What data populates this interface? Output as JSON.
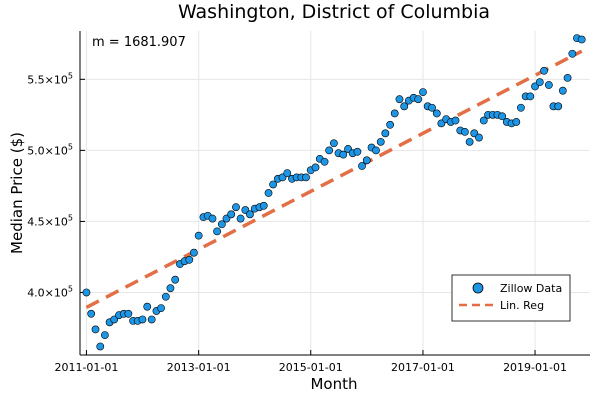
{
  "chart_data": {
    "type": "scatter",
    "title": "Washington, District of Columbia",
    "xlabel": "Month",
    "ylabel": "Median Price ($)",
    "annotation": "m = 1681.907",
    "x_ticks": [
      "2011-01-01",
      "2013-01-01",
      "2015-01-01",
      "2017-01-01",
      "2019-01-01"
    ],
    "y_ticks": [
      {
        "value": 400000,
        "mantissa": "4.0×10",
        "exp": "5"
      },
      {
        "value": 450000,
        "mantissa": "4.5×10",
        "exp": "5"
      },
      {
        "value": 500000,
        "mantissa": "5.0×10",
        "exp": "5"
      },
      {
        "value": 550000,
        "mantissa": "5.5×10",
        "exp": "5"
      }
    ],
    "xlim": [
      "2010-11-20",
      "2019-12-25"
    ],
    "ylim": [
      356000,
      584000
    ],
    "grid": true,
    "legend_position": "bottom-right",
    "series": [
      {
        "name": "Zillow Data",
        "kind": "scatter",
        "color": "#1e96e6",
        "x": [
          "2011-01",
          "2011-02",
          "2011-03",
          "2011-04",
          "2011-05",
          "2011-06",
          "2011-07",
          "2011-08",
          "2011-09",
          "2011-10",
          "2011-11",
          "2011-12",
          "2012-01",
          "2012-02",
          "2012-03",
          "2012-04",
          "2012-05",
          "2012-06",
          "2012-07",
          "2012-08",
          "2012-09",
          "2012-10",
          "2012-11",
          "2012-12",
          "2013-01",
          "2013-02",
          "2013-03",
          "2013-04",
          "2013-05",
          "2013-06",
          "2013-07",
          "2013-08",
          "2013-09",
          "2013-10",
          "2013-11",
          "2013-12",
          "2014-01",
          "2014-02",
          "2014-03",
          "2014-04",
          "2014-05",
          "2014-06",
          "2014-07",
          "2014-08",
          "2014-09",
          "2014-10",
          "2014-11",
          "2014-12",
          "2015-01",
          "2015-02",
          "2015-03",
          "2015-04",
          "2015-05",
          "2015-06",
          "2015-07",
          "2015-08",
          "2015-09",
          "2015-10",
          "2015-11",
          "2015-12",
          "2016-01",
          "2016-02",
          "2016-03",
          "2016-04",
          "2016-05",
          "2016-06",
          "2016-07",
          "2016-08",
          "2016-09",
          "2016-10",
          "2016-11",
          "2016-12",
          "2017-01",
          "2017-02",
          "2017-03",
          "2017-04",
          "2017-05",
          "2017-06",
          "2017-07",
          "2017-08",
          "2017-09",
          "2017-10",
          "2017-11",
          "2017-12",
          "2018-01",
          "2018-02",
          "2018-03",
          "2018-04",
          "2018-05",
          "2018-06",
          "2018-07",
          "2018-08",
          "2018-09",
          "2018-10",
          "2018-11",
          "2018-12",
          "2019-01",
          "2019-02",
          "2019-03",
          "2019-04",
          "2019-05",
          "2019-06",
          "2019-07",
          "2019-08",
          "2019-09",
          "2019-10",
          "2019-11"
        ],
        "y": [
          400000,
          385000,
          374000,
          362000,
          370000,
          379000,
          381000,
          384000,
          385000,
          385000,
          380000,
          380000,
          381000,
          390000,
          381000,
          387000,
          389000,
          397000,
          403000,
          409000,
          420000,
          422000,
          423000,
          428000,
          440000,
          453000,
          454000,
          452000,
          443000,
          448000,
          452000,
          455000,
          460000,
          452000,
          458000,
          455000,
          459000,
          460000,
          461000,
          470000,
          476000,
          480000,
          481000,
          484000,
          480000,
          481000,
          481000,
          481000,
          486000,
          488000,
          494000,
          492000,
          500000,
          505000,
          498000,
          497000,
          501000,
          498000,
          499000,
          489000,
          493000,
          502000,
          500000,
          506000,
          512000,
          518000,
          526000,
          536000,
          531000,
          535000,
          537000,
          536000,
          541000,
          531000,
          530000,
          526000,
          519000,
          522000,
          520000,
          521000,
          514000,
          513000,
          506000,
          512000,
          509000,
          521000,
          525000,
          525000,
          525000,
          524000,
          520000,
          519000,
          520000,
          530000,
          538000,
          538000,
          545000,
          548000,
          556000,
          546000,
          531000,
          531000,
          542000,
          551000,
          568000,
          579000,
          578000
        ]
      },
      {
        "name": "Lin. Reg",
        "kind": "line",
        "style": "dashed",
        "color": "#e26f46",
        "x": [
          "2011-01",
          "2019-11"
        ],
        "y": [
          389500,
          569800
        ]
      }
    ]
  }
}
